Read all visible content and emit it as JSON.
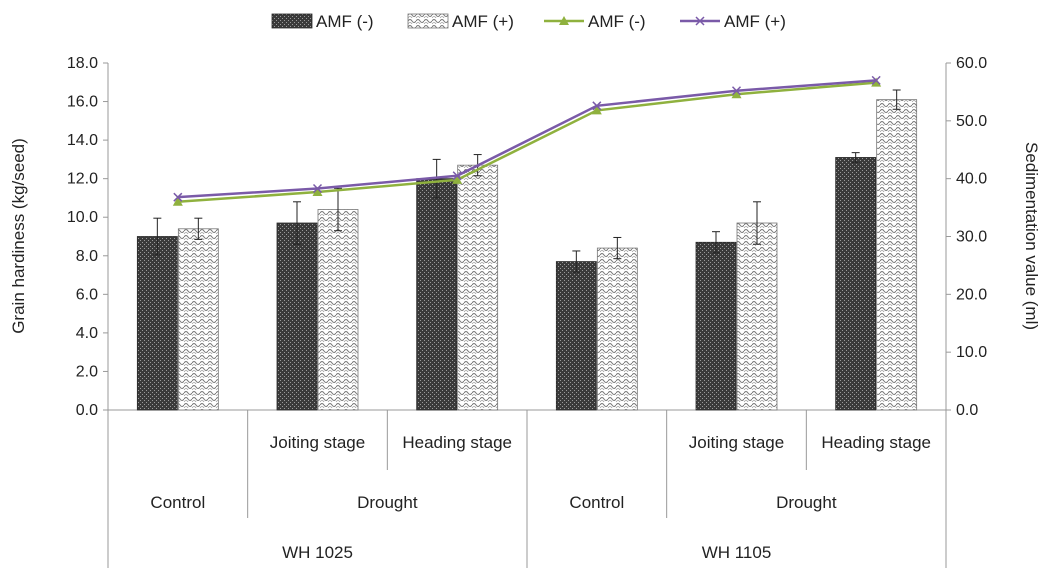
{
  "chart_data": {
    "type": "bar",
    "categories": [
      [
        "WH 1025",
        "Control",
        ""
      ],
      [
        "WH 1025",
        "Drought",
        "Joiting stage"
      ],
      [
        "WH 1025",
        "Drought",
        "Heading stage"
      ],
      [
        "WH 1105",
        "Control",
        ""
      ],
      [
        "WH 1105",
        "Drought",
        "Joiting stage"
      ],
      [
        "WH 1105",
        "Drought",
        "Heading stage"
      ]
    ],
    "category_groups": {
      "level3": [
        "",
        "Joiting stage",
        "Heading stage",
        "",
        "Joiting stage",
        "Heading stage"
      ],
      "level2": [
        {
          "label": "Control",
          "span": [
            0,
            0
          ]
        },
        {
          "label": "Drought",
          "span": [
            1,
            2
          ]
        },
        {
          "label": "Control",
          "span": [
            3,
            3
          ]
        },
        {
          "label": "Drought",
          "span": [
            4,
            5
          ]
        }
      ],
      "level1": [
        {
          "label": "WH 1025",
          "span": [
            0,
            2
          ]
        },
        {
          "label": "WH 1105",
          "span": [
            3,
            5
          ]
        }
      ]
    },
    "bar_series": [
      {
        "name": "AMF (-)",
        "axis": "left",
        "pattern": "dots-dark",
        "values": [
          9.0,
          9.7,
          12.0,
          7.7,
          8.7,
          13.1
        ],
        "errors": [
          0.95,
          1.1,
          1.0,
          0.55,
          0.55,
          0.25
        ]
      },
      {
        "name": "AMF (+)",
        "axis": "left",
        "pattern": "waves-light",
        "values": [
          9.4,
          10.4,
          12.7,
          8.4,
          9.7,
          16.1
        ],
        "errors": [
          0.55,
          1.1,
          0.55,
          0.55,
          1.1,
          0.5
        ]
      }
    ],
    "line_series": [
      {
        "name": "AMF (-)",
        "axis": "right",
        "marker": "triangle",
        "color": "#8fb13e",
        "values": [
          36.0,
          37.7,
          39.8,
          51.8,
          54.6,
          56.6
        ]
      },
      {
        "name": "AMF (+)",
        "axis": "right",
        "marker": "x",
        "color": "#7a5aa8",
        "values": [
          36.8,
          38.3,
          40.5,
          52.6,
          55.2,
          57.0
        ]
      }
    ],
    "ylabel": "Grain hardiness (kg/seed)",
    "ylim": [
      0,
      18
    ],
    "yticks": [
      "0.0",
      "2.0",
      "4.0",
      "6.0",
      "8.0",
      "10.0",
      "12.0",
      "14.0",
      "16.0",
      "18.0"
    ],
    "y2label": "Sedimentation value (ml)",
    "y2lim": [
      0,
      60
    ],
    "y2ticks": [
      "0.0",
      "10.0",
      "20.0",
      "30.0",
      "40.0",
      "50.0",
      "60.0"
    ],
    "legend_position": "top",
    "grid": false
  }
}
